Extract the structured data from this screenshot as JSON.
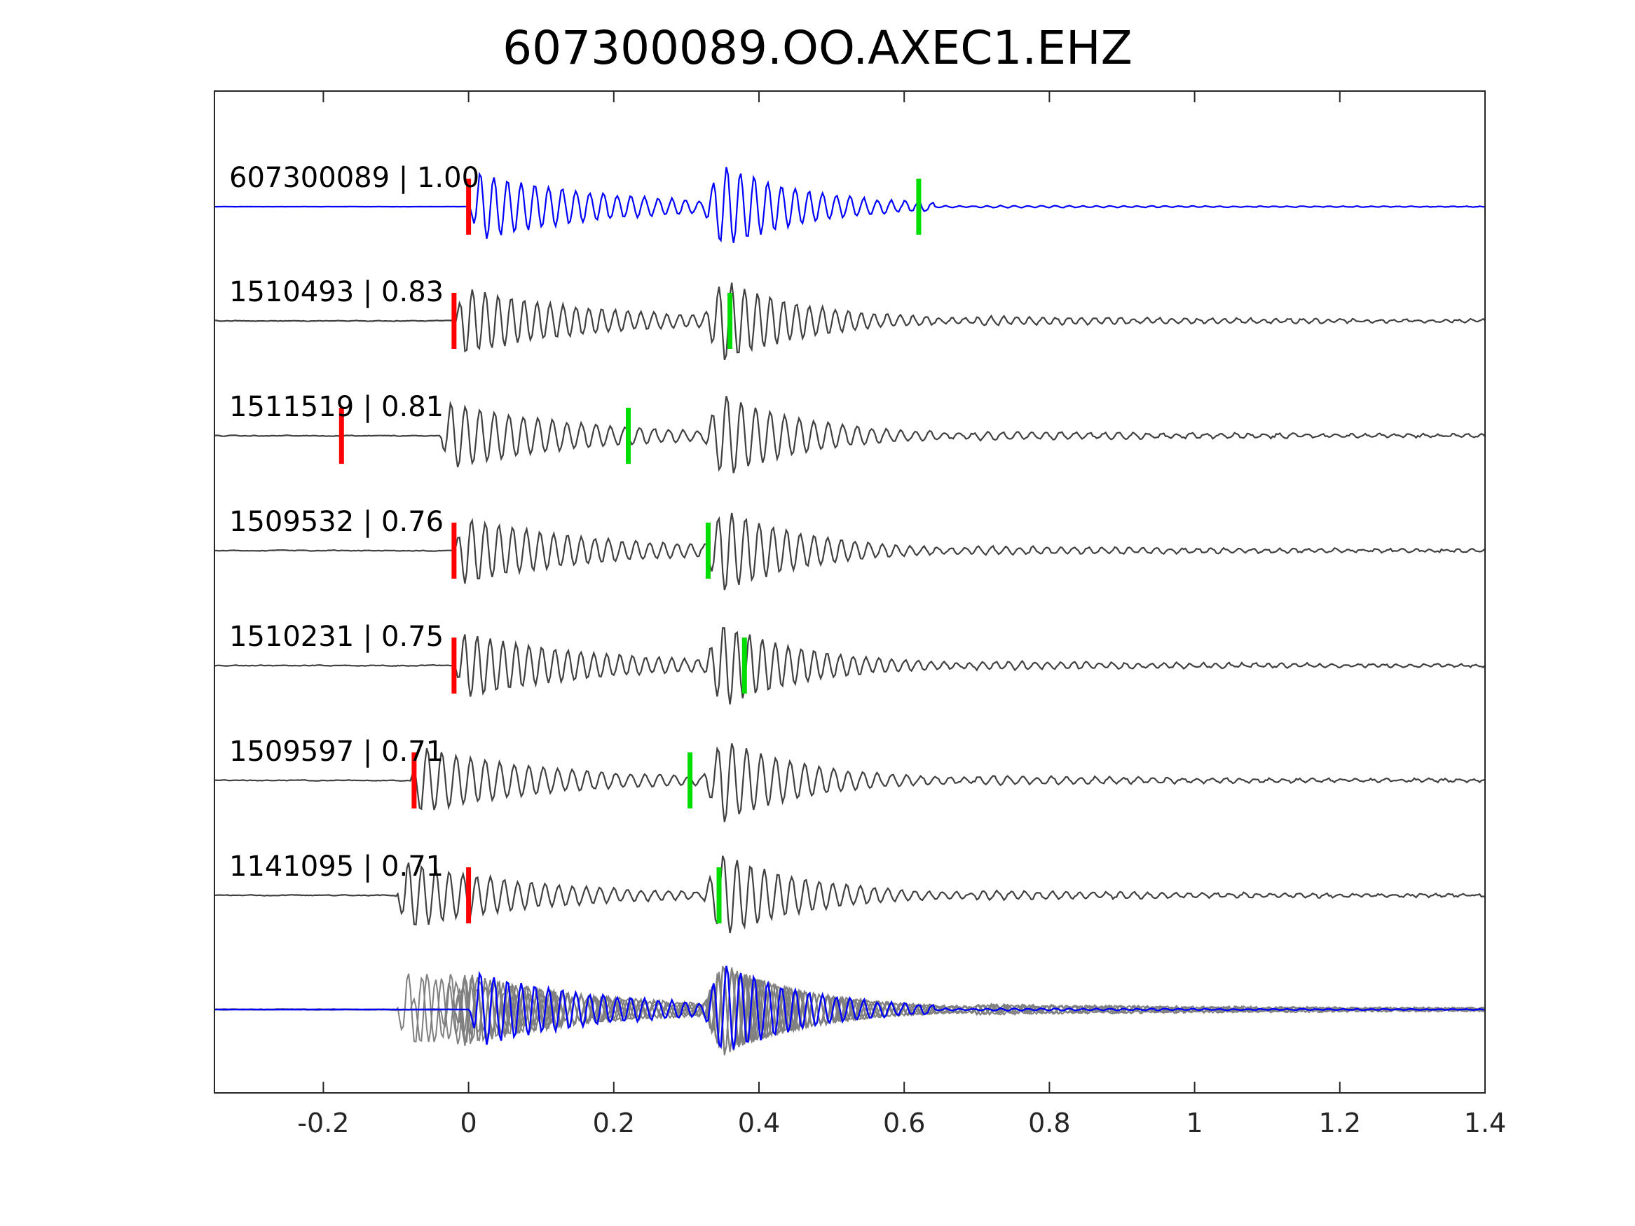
{
  "chart_data": {
    "type": "line",
    "title": "607300089.OO.AXEC1.EHZ",
    "xlabel": "",
    "ylabel": "",
    "xlim": [
      -0.35,
      1.4
    ],
    "xticks": [
      "-0.2",
      "0",
      "0.2",
      "0.4",
      "0.6",
      "0.8",
      "1",
      "1.2",
      "1.4"
    ],
    "xtick_values": [
      -0.2,
      0,
      0.2,
      0.4,
      0.6,
      0.8,
      1.0,
      1.2,
      1.4
    ],
    "grid": false,
    "colors": {
      "reference": "#0000ff",
      "trace": "#404040",
      "stack": "#808080",
      "p_pick": "#ff0000",
      "s_pick": "#00dd00",
      "axes": "#262626"
    },
    "traces": [
      {
        "label": "607300089 | 1.00",
        "reference": true,
        "onset": 0.0,
        "p_pick": 0.0,
        "s_pick": 0.62,
        "seed": 1
      },
      {
        "label": "1510493 | 0.83",
        "reference": false,
        "onset": -0.02,
        "p_pick": -0.02,
        "s_pick": 0.36,
        "seed": 2
      },
      {
        "label": "1511519 | 0.81",
        "reference": false,
        "onset": -0.04,
        "p_pick": -0.175,
        "s_pick": 0.22,
        "seed": 3
      },
      {
        "label": "1509532 | 0.76",
        "reference": false,
        "onset": -0.02,
        "p_pick": -0.02,
        "s_pick": 0.33,
        "seed": 4
      },
      {
        "label": "1510231 | 0.75",
        "reference": false,
        "onset": -0.02,
        "p_pick": -0.02,
        "s_pick": 0.38,
        "seed": 5
      },
      {
        "label": "1509597 | 0.71",
        "reference": false,
        "onset": -0.08,
        "p_pick": -0.075,
        "s_pick": 0.305,
        "seed": 6
      },
      {
        "label": "1141095 | 0.71",
        "reference": false,
        "onset": -0.1,
        "p_pick": 0.0,
        "s_pick": 0.345,
        "seed": 7
      }
    ]
  }
}
